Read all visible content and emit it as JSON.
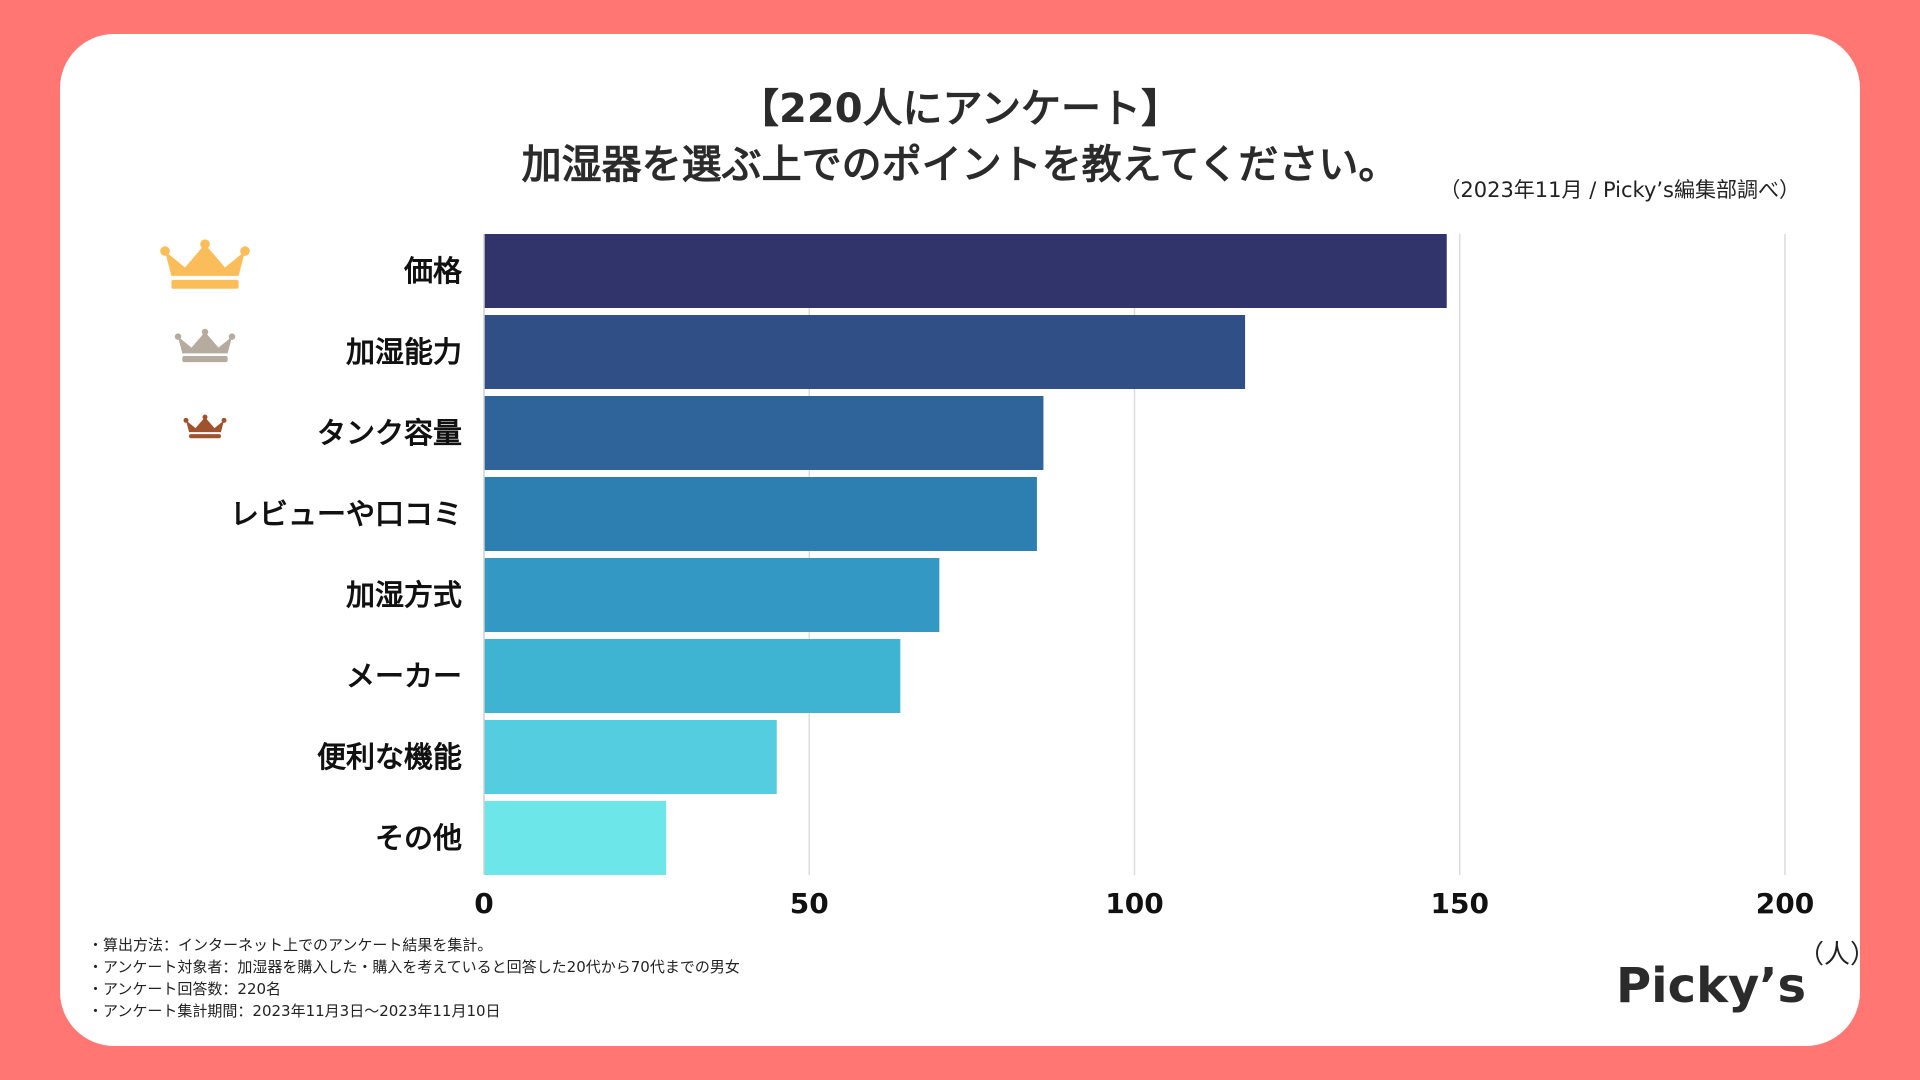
{
  "header": {
    "title_line1": "【220人にアンケート】",
    "title_line2": "加湿器を選ぶ上でのポイントを教えてください。",
    "source": "（2023年11月 / Picky’s編集部調べ）"
  },
  "footer": {
    "notes": [
      "・算出方法：インターネット上でのアンケート結果を集計。",
      "・アンケート対象者：加湿器を購入した・購入を考えていると回答した20代から70代までの男女",
      "・アンケート回答数：220名",
      "・アンケート集計期間：2023年11月3日〜2023年11月10日"
    ],
    "unit": "（人）",
    "logo": "Picky’s"
  },
  "colors": {
    "background": "#ff7672",
    "gold_crown": "#fbbd59",
    "silver_crown": "#b5ab9f",
    "bronze_crown": "#a0522d",
    "bars": [
      "#31346b",
      "#314f87",
      "#2f649b",
      "#2e7fb1",
      "#3399c4",
      "#3fb3d2",
      "#54cde0",
      "#6ce6e9"
    ]
  },
  "chart_data": {
    "type": "bar",
    "orientation": "horizontal",
    "title": "加湿器を選ぶ上でのポイントを教えてください。",
    "categories": [
      "価格",
      "加湿能力",
      "タンク容量",
      "レビューや口コミ",
      "加湿方式",
      "メーカー",
      "便利な機能",
      "その他"
    ],
    "values": [
      148,
      117,
      86,
      85,
      70,
      64,
      45,
      28
    ],
    "xlim": [
      0,
      200
    ],
    "xticks": [
      0,
      50,
      100,
      150,
      200
    ],
    "xlabel": "（人）",
    "grid": true,
    "rank_icons": [
      "gold-crown",
      "silver-crown",
      "bronze-crown"
    ]
  }
}
